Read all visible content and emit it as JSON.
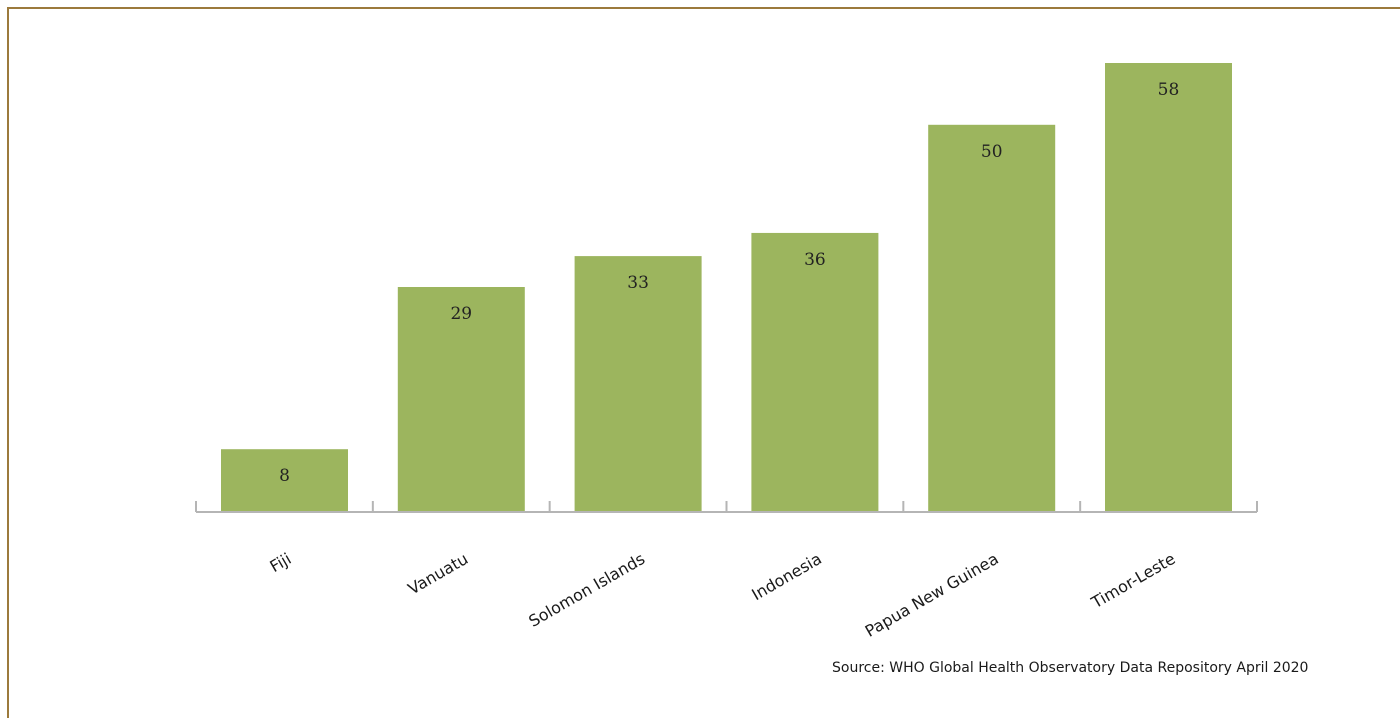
{
  "chart_data": {
    "type": "bar",
    "categories": [
      "Fiji",
      "Vanuatu",
      "Solomon Islands",
      "Indonesia",
      "Papua New Guinea",
      "Timor-Leste"
    ],
    "values": [
      8,
      29,
      33,
      36,
      50,
      58
    ],
    "title": "",
    "xlabel": "",
    "ylabel": "",
    "ylim": [
      0,
      58
    ],
    "grid": false,
    "legend": "none",
    "data_labels": [
      "8",
      "29",
      "33",
      "36",
      "50",
      "58"
    ],
    "colors": {
      "bar": "#9cb55e",
      "axis": "#b5b5b5",
      "frame": "#9c7a3c"
    }
  },
  "source": "Source: WHO Global Health Observatory Data Repository April 2020"
}
